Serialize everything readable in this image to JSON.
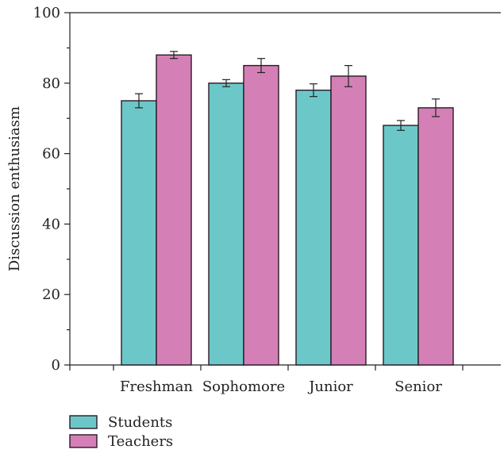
{
  "chart_data": {
    "type": "bar",
    "categories": [
      "Freshman",
      "Sophomore",
      "Junior",
      "Senior"
    ],
    "series": [
      {
        "name": "Students",
        "color": "#6cc8c8",
        "values": [
          75,
          80,
          78,
          68
        ],
        "errors": [
          2,
          1,
          1.8,
          1.4
        ]
      },
      {
        "name": "Teachers",
        "color": "#d480b6",
        "values": [
          88,
          85,
          82,
          73
        ],
        "errors": [
          1,
          2,
          3,
          2.5
        ]
      }
    ],
    "title": "",
    "xlabel": "",
    "ylabel": "Discussion enthusiasm",
    "ylim": [
      0,
      100
    ],
    "yticks": [
      0,
      20,
      40,
      60,
      80,
      100
    ],
    "ytick_labels": [
      "0",
      "20",
      "40",
      "60",
      "80",
      "100"
    ],
    "y_minor_ticks": true,
    "grid": false,
    "legend_position": "bottom-left"
  }
}
